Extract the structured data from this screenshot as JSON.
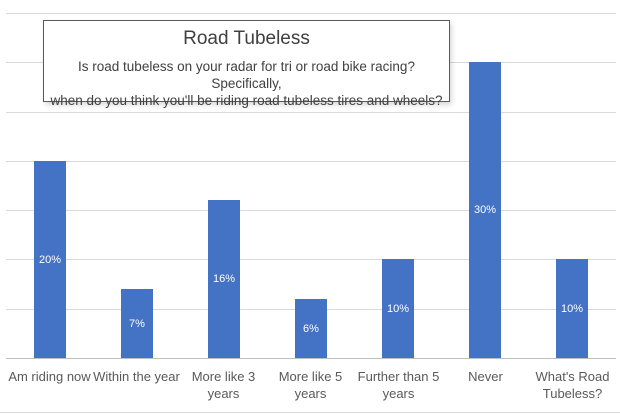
{
  "chart": {
    "title": "Road Tubeless",
    "subtitle_lines": [
      "Is road tubeless on your radar for tri or road bike racing? Specifically,",
      "when do you think you'll be riding road tubeless tires and wheels?"
    ]
  },
  "chart_data": {
    "type": "bar",
    "title": "Road Tubeless",
    "subtitle": "Is road tubeless on your radar for tri or road bike racing? Specifically, when do you think you'll be riding road tubeless tires and wheels?",
    "categories": [
      "Am riding now",
      "Within the year",
      "More like 3 years",
      "More like 5 years",
      "Further than 5 years",
      "Never",
      "What's Road Tubeless?"
    ],
    "values": [
      20,
      7,
      16,
      6,
      10,
      30,
      10
    ],
    "data_labels": [
      "20%",
      "7%",
      "16%",
      "6%",
      "10%",
      "30%",
      "10%"
    ],
    "data_label_position": "inside-center",
    "xlabel": "",
    "ylabel": "",
    "ylim": [
      0,
      35
    ],
    "grid_step": 5,
    "grid": "on",
    "legend": "none",
    "y_axis_labels_visible": false
  },
  "colors": {
    "bar": "#4472C4",
    "gridline": "#D9D9D9",
    "axis_line": "#BFBFBF",
    "category_text": "#595959",
    "title_text": "#404040",
    "box_border": "#595959",
    "data_label_text": "#FFFFFF"
  }
}
